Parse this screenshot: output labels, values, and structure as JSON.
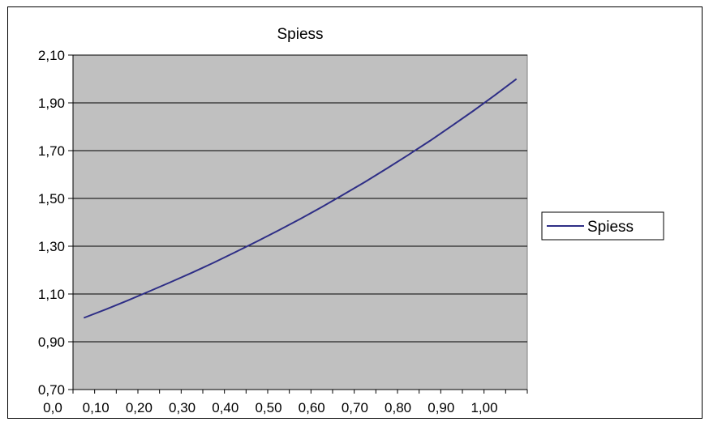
{
  "chart_data": {
    "type": "line",
    "title": "Spiess",
    "xlabel": "",
    "ylabel": "",
    "x_tick_labels": [
      "0,0",
      "0,10",
      "0,20",
      "0,30",
      "0,40",
      "0,50",
      "0,60",
      "0,70",
      "0,80",
      "0,90",
      "1,00"
    ],
    "y_tick_labels": [
      "0,70",
      "0,90",
      "1,10",
      "1,30",
      "1,50",
      "1,70",
      "1,90",
      "2,10"
    ],
    "ylim": [
      0.7,
      2.1
    ],
    "grid": true,
    "legend_position": "right",
    "plot_background": "#c0c0c0",
    "line_color": "#2e2e86",
    "series": [
      {
        "name": "Spiess",
        "x": [
          0.0,
          0.05,
          0.1,
          0.15,
          0.2,
          0.25,
          0.3,
          0.35,
          0.4,
          0.45,
          0.5,
          0.55,
          0.6,
          0.65,
          0.7,
          0.75,
          0.8,
          0.85,
          0.9,
          0.95,
          1.0
        ],
        "values": [
          1.0,
          1.035,
          1.072,
          1.11,
          1.149,
          1.189,
          1.231,
          1.275,
          1.32,
          1.366,
          1.414,
          1.464,
          1.516,
          1.569,
          1.625,
          1.682,
          1.741,
          1.803,
          1.866,
          1.932,
          2.0
        ]
      }
    ]
  }
}
